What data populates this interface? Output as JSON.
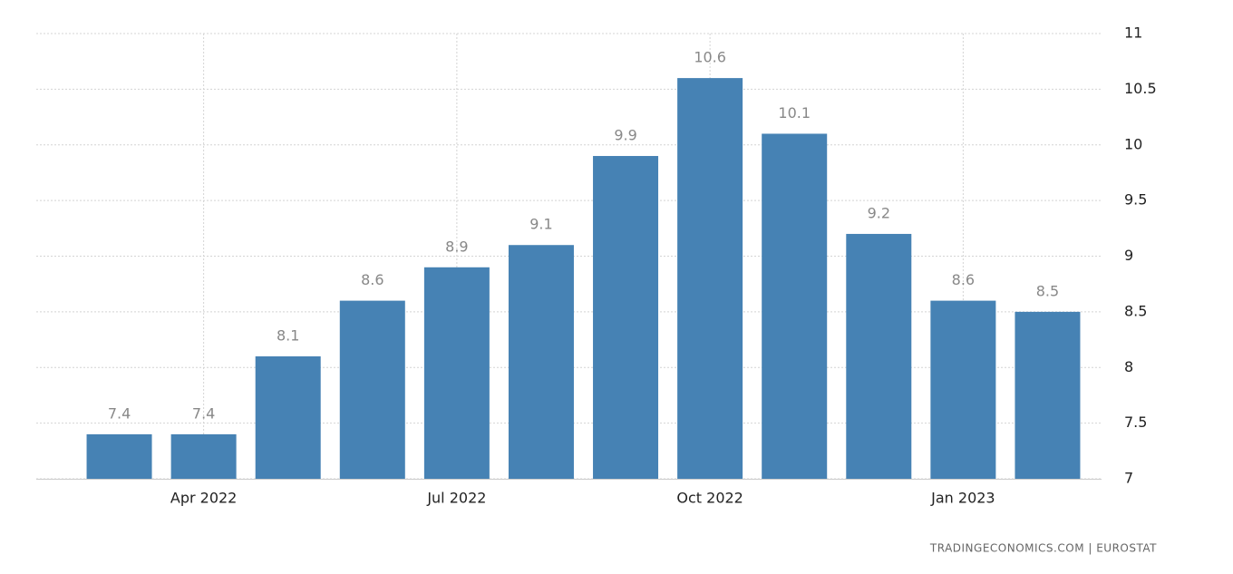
{
  "chart_data": {
    "type": "bar",
    "categories": [
      null,
      "Apr 2022",
      null,
      null,
      "Jul 2022",
      null,
      null,
      "Oct 2022",
      null,
      null,
      "Jan 2023",
      null
    ],
    "values": [
      7.4,
      7.4,
      8.1,
      8.6,
      8.9,
      9.1,
      9.9,
      10.6,
      10.1,
      9.2,
      8.6,
      8.5
    ],
    "color": "#4682b4",
    "ylim": [
      7,
      11
    ],
    "yticks": [
      7,
      7.5,
      8,
      8.5,
      9,
      9.5,
      10,
      10.5,
      11
    ],
    "grid": true,
    "source": "TRADINGECONOMICS.COM | EUROSTAT"
  }
}
